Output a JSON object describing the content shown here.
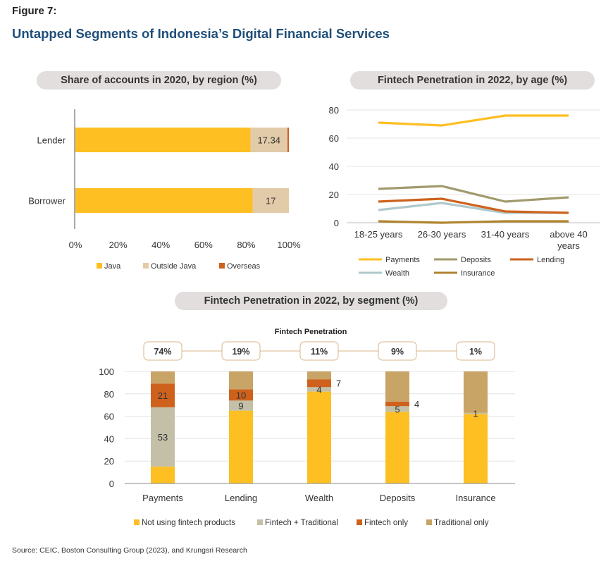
{
  "header": {
    "figure_label": "Figure 7:",
    "title": "Untapped Segments of Indonesia’s Digital Financial Services"
  },
  "source": "Source: CEIC, Boston Consulting Group (2023), and Krungsri Research",
  "colors": {
    "gold": "#FDBF22",
    "beige": "#E2CBA8",
    "orange": "#CE621D",
    "khaki": "#A19A6E",
    "lightblue": "#AFC9CC",
    "brown": "#B0842F",
    "grey": "#C4C0A8",
    "tan": "#C9A467",
    "pill": "#E3DEDE"
  },
  "chart_data": [
    {
      "id": "regional",
      "type": "bar",
      "orientation": "horizontal",
      "stacked": true,
      "title": "Share of accounts in 2020, by region (%)",
      "categories": [
        "Lender",
        "Borrower"
      ],
      "series": [
        {
          "name": "Java",
          "values": [
            82.0,
            83.0
          ],
          "color": "#FDBF22"
        },
        {
          "name": "Outside Java",
          "values": [
            17.34,
            17.0
          ],
          "color": "#E2CBA8"
        },
        {
          "name": "Overseas",
          "values": [
            0.66,
            0
          ],
          "color": "#CE621D"
        }
      ],
      "data_labels": [
        "17.34",
        "17"
      ],
      "xticks": [
        "0%",
        "20%",
        "40%",
        "60%",
        "80%",
        "100%"
      ],
      "xlim": [
        0,
        100
      ],
      "legend": "bottom"
    },
    {
      "id": "age",
      "type": "line",
      "title": "Fintech Penetration in 2022, by age (%)",
      "categories": [
        "18-25 years",
        "26-30 years",
        "31-40 years",
        "above 40 years"
      ],
      "series": [
        {
          "name": "Payments",
          "values": [
            71,
            69,
            76,
            76
          ],
          "color": "#FDBF22"
        },
        {
          "name": "Deposits",
          "values": [
            24,
            26,
            15,
            18
          ],
          "color": "#A19A6E"
        },
        {
          "name": "Lending",
          "values": [
            15,
            17,
            8,
            7
          ],
          "color": "#CE621D"
        },
        {
          "name": "Wealth",
          "values": [
            9,
            14,
            7,
            7
          ],
          "color": "#AFC9CC"
        },
        {
          "name": "Insurance",
          "values": [
            1,
            0,
            1,
            1
          ],
          "color": "#B0842F"
        }
      ],
      "yticks": [
        "0",
        "20",
        "40",
        "60",
        "80"
      ],
      "ylim": [
        0,
        80
      ],
      "grid": true,
      "legend": "bottom"
    },
    {
      "id": "segment",
      "type": "bar",
      "stacked": true,
      "title": "Fintech Penetration in 2022, by segment (%)",
      "subtitle": "Fintech Penetration",
      "penetration_labels": [
        "74%",
        "19%",
        "11%",
        "9%",
        "1%"
      ],
      "categories": [
        "Payments",
        "Lending",
        "Wealth",
        "Deposits",
        "Insurance"
      ],
      "series": [
        {
          "name": "Not using fintech products",
          "values": [
            15,
            65,
            82,
            64,
            62
          ],
          "color": "#FDBF22"
        },
        {
          "name": "Fintech + Traditional",
          "values": [
            53,
            9,
            4,
            5,
            1
          ],
          "color": "#C4C0A8"
        },
        {
          "name": "Fintech only",
          "values": [
            21,
            10,
            7,
            4,
            0
          ],
          "color": "#CE621D"
        },
        {
          "name": "Traditional only",
          "values": [
            11,
            16,
            7,
            27,
            37
          ],
          "color": "#C9A467"
        }
      ],
      "data_labels": [
        {
          "category": "Payments",
          "series": "Fintech + Traditional",
          "text": "53"
        },
        {
          "category": "Payments",
          "series": "Fintech only",
          "text": "21"
        },
        {
          "category": "Lending",
          "series": "Fintech + Traditional",
          "text": "9"
        },
        {
          "category": "Lending",
          "series": "Fintech only",
          "text": "10"
        },
        {
          "category": "Wealth",
          "series": "Fintech + Traditional",
          "text": "4"
        },
        {
          "category": "Wealth",
          "series": "Fintech only",
          "text": "7"
        },
        {
          "category": "Deposits",
          "series": "Fintech + Traditional",
          "text": "5"
        },
        {
          "category": "Deposits",
          "series": "Fintech only",
          "text": "4"
        },
        {
          "category": "Insurance",
          "series": "Fintech + Traditional",
          "text": "1"
        }
      ],
      "yticks": [
        "0",
        "20",
        "40",
        "60",
        "80",
        "100"
      ],
      "ylim": [
        0,
        100
      ],
      "grid": true,
      "legend": "bottom"
    }
  ]
}
